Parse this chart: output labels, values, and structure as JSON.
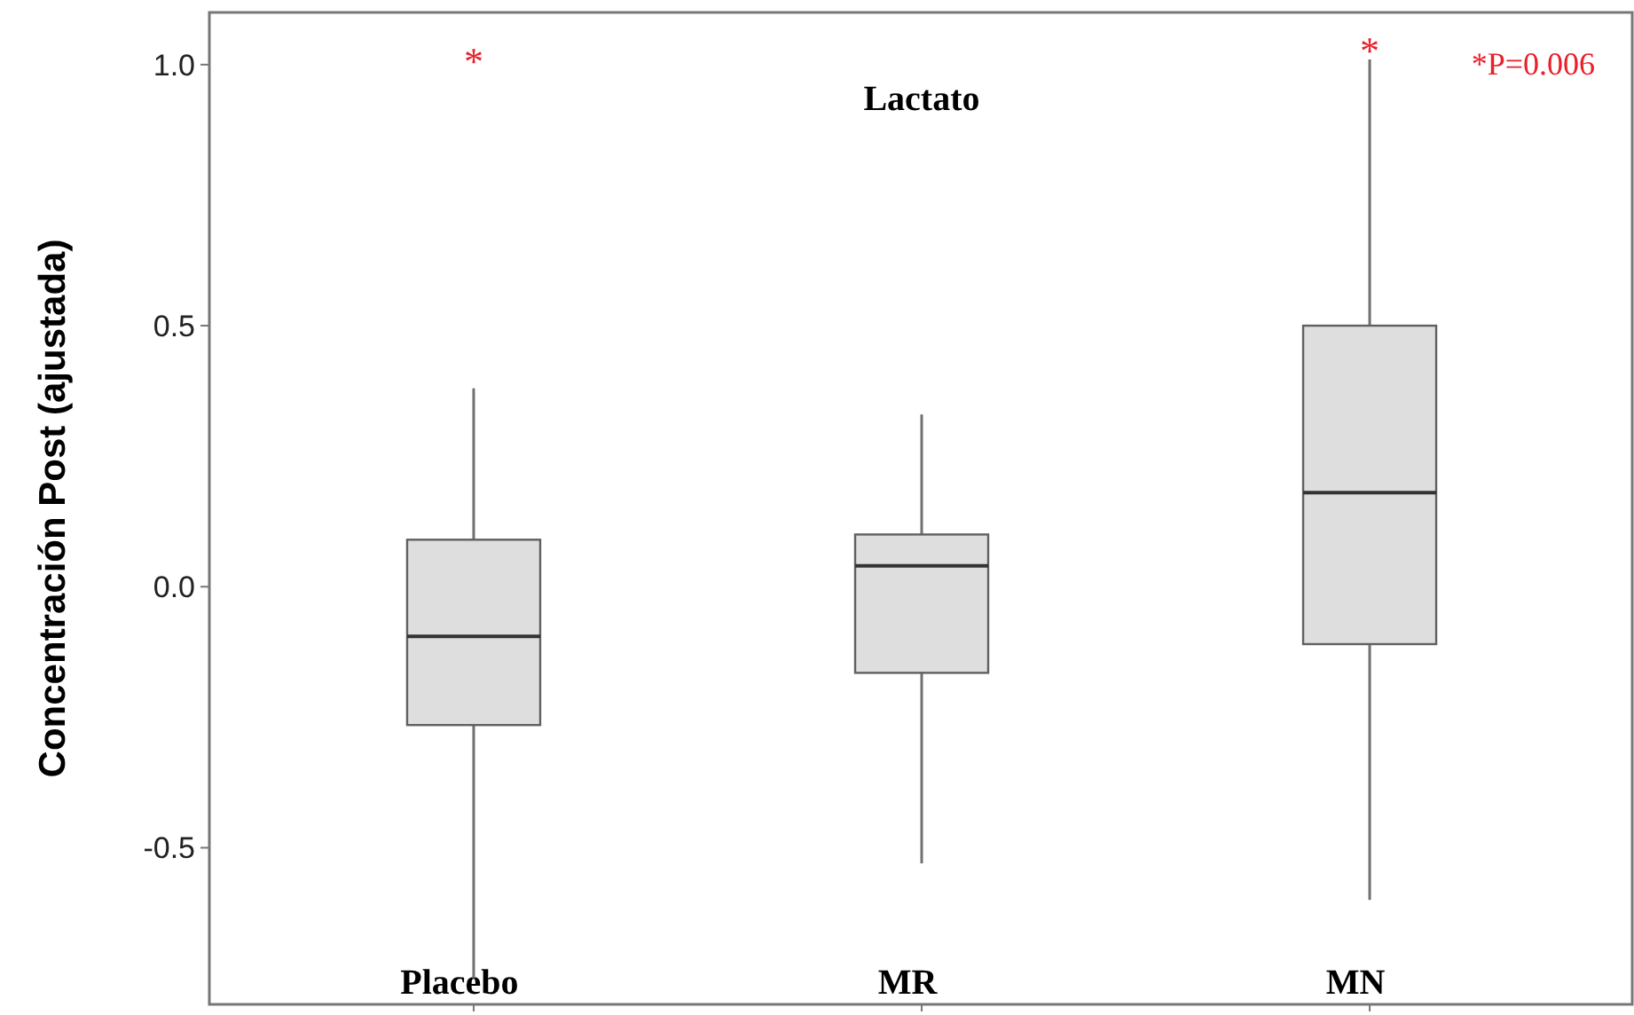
{
  "chart_data": {
    "type": "box",
    "title": "Lactato",
    "ylabel": "Concentración Post (ajustada)",
    "categories": [
      "Placebo",
      "MR",
      "MN"
    ],
    "boxes": [
      {
        "low": -0.75,
        "q1": -0.265,
        "median": -0.095,
        "q3": 0.09,
        "high": 0.38
      },
      {
        "low": -0.53,
        "q1": -0.165,
        "median": 0.04,
        "q3": 0.1,
        "high": 0.33
      },
      {
        "low": -0.6,
        "q1": -0.11,
        "median": 0.18,
        "q3": 0.5,
        "high": 1.01
      }
    ],
    "color": "#dedede",
    "ylim": [
      -0.8,
      1.1
    ],
    "yticks": [
      {
        "value": -0.5,
        "label": "-0.5"
      },
      {
        "value": 0,
        "label": "0.0"
      },
      {
        "value": 0.5,
        "label": "0.5"
      },
      {
        "value": 1,
        "label": "1.0"
      }
    ],
    "grid": false,
    "annotations": [
      "*",
      "*",
      "*P=0.006"
    ]
  }
}
